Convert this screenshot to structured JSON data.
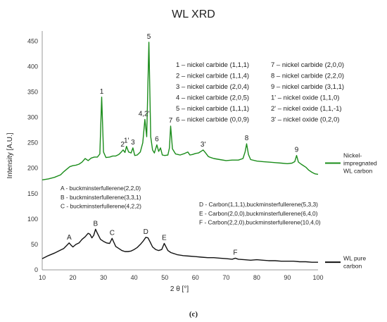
{
  "chart_data": {
    "type": "line",
    "title": "WL XRD",
    "xlabel": "2 θ [°]",
    "ylabel": "Intensity [A.U.]",
    "xlim": [
      10,
      100
    ],
    "ylim": [
      0,
      470
    ],
    "x_ticks": [
      10,
      20,
      30,
      40,
      50,
      60,
      70,
      80,
      90,
      100
    ],
    "y_ticks": [
      0,
      50,
      100,
      150,
      200,
      250,
      300,
      350,
      400,
      450
    ],
    "grid": false,
    "legend_position": "right",
    "caption": "(c)",
    "series": [
      {
        "name": "Nickel-impregnated WL carbon",
        "legend_lines": [
          "Nickel-",
          "impregnated",
          "WL carbon"
        ],
        "color": "#1a8c1a",
        "points": [
          [
            10,
            177
          ],
          [
            12,
            179
          ],
          [
            14,
            182
          ],
          [
            16,
            187
          ],
          [
            17,
            193
          ],
          [
            18,
            198
          ],
          [
            19,
            203
          ],
          [
            20,
            205
          ],
          [
            21,
            206
          ],
          [
            22,
            208
          ],
          [
            23,
            212
          ],
          [
            24,
            219
          ],
          [
            25,
            215
          ],
          [
            26,
            220
          ],
          [
            27,
            222
          ],
          [
            28,
            222
          ],
          [
            28.8,
            228
          ],
          [
            29.4,
            340
          ],
          [
            30,
            232
          ],
          [
            30.8,
            221
          ],
          [
            32,
            222
          ],
          [
            33,
            224
          ],
          [
            34,
            224
          ],
          [
            35,
            227
          ],
          [
            35.8,
            232
          ],
          [
            36.4,
            236
          ],
          [
            37,
            231
          ],
          [
            37.5,
            243
          ],
          [
            38.2,
            232
          ],
          [
            39,
            230
          ],
          [
            39.6,
            240
          ],
          [
            40.2,
            225
          ],
          [
            41,
            226
          ],
          [
            42,
            232
          ],
          [
            42.8,
            250
          ],
          [
            43.5,
            296
          ],
          [
            44.1,
            262
          ],
          [
            44.8,
            448
          ],
          [
            45.4,
            262
          ],
          [
            46,
            236
          ],
          [
            46.6,
            230
          ],
          [
            47.4,
            246
          ],
          [
            48,
            233
          ],
          [
            48.6,
            240
          ],
          [
            49.2,
            226
          ],
          [
            50,
            225
          ],
          [
            51,
            226
          ],
          [
            51.5,
            240
          ],
          [
            51.9,
            283
          ],
          [
            52.5,
            238
          ],
          [
            53.5,
            228
          ],
          [
            55,
            226
          ],
          [
            56.5,
            229
          ],
          [
            57.5,
            232
          ],
          [
            58.2,
            226
          ],
          [
            59,
            227
          ],
          [
            60,
            229
          ],
          [
            61,
            230
          ],
          [
            61.8,
            233
          ],
          [
            62.5,
            236
          ],
          [
            63.3,
            230
          ],
          [
            64.2,
            223
          ],
          [
            65,
            221
          ],
          [
            66,
            219
          ],
          [
            68,
            217
          ],
          [
            70,
            215
          ],
          [
            72,
            216
          ],
          [
            74,
            216
          ],
          [
            75.5,
            219
          ],
          [
            76.2,
            232
          ],
          [
            76.7,
            248
          ],
          [
            77.3,
            227
          ],
          [
            78,
            217
          ],
          [
            80,
            214
          ],
          [
            82,
            213
          ],
          [
            84,
            212
          ],
          [
            86,
            211
          ],
          [
            88,
            210
          ],
          [
            90,
            209
          ],
          [
            91.5,
            210
          ],
          [
            92.4,
            213
          ],
          [
            93,
            225
          ],
          [
            93.6,
            212
          ],
          [
            94.5,
            208
          ],
          [
            96,
            202
          ],
          [
            97,
            196
          ],
          [
            98,
            192
          ],
          [
            99,
            189
          ],
          [
            100,
            188
          ]
        ]
      },
      {
        "name": "WL pure carbon",
        "legend_lines": [
          "WL pure",
          "carbon"
        ],
        "color": "#111111",
        "points": [
          [
            10,
            22
          ],
          [
            12,
            28
          ],
          [
            14,
            33
          ],
          [
            16,
            39
          ],
          [
            17,
            42
          ],
          [
            18,
            48
          ],
          [
            18.8,
            53
          ],
          [
            19.5,
            48
          ],
          [
            20,
            45
          ],
          [
            21,
            50
          ],
          [
            22,
            53
          ],
          [
            23,
            60
          ],
          [
            24,
            65
          ],
          [
            25,
            72
          ],
          [
            25.6,
            70
          ],
          [
            26.2,
            63
          ],
          [
            26.8,
            68
          ],
          [
            27.4,
            80
          ],
          [
            28,
            72
          ],
          [
            29,
            60
          ],
          [
            30,
            56
          ],
          [
            31,
            53
          ],
          [
            32,
            52
          ],
          [
            32.8,
            62
          ],
          [
            33.4,
            54
          ],
          [
            34,
            46
          ],
          [
            35,
            42
          ],
          [
            36,
            38
          ],
          [
            37,
            36
          ],
          [
            38,
            36
          ],
          [
            39,
            37
          ],
          [
            40,
            40
          ],
          [
            41,
            44
          ],
          [
            42,
            50
          ],
          [
            43,
            57
          ],
          [
            43.8,
            64
          ],
          [
            44.5,
            63
          ],
          [
            45.2,
            55
          ],
          [
            46,
            45
          ],
          [
            47,
            40
          ],
          [
            48,
            38
          ],
          [
            49,
            40
          ],
          [
            49.8,
            52
          ],
          [
            50.5,
            44
          ],
          [
            51,
            38
          ],
          [
            52,
            34
          ],
          [
            53,
            32
          ],
          [
            54,
            30
          ],
          [
            56,
            28
          ],
          [
            58,
            27
          ],
          [
            60,
            26
          ],
          [
            62,
            25
          ],
          [
            64,
            24
          ],
          [
            66,
            24
          ],
          [
            68,
            23
          ],
          [
            70,
            22
          ],
          [
            72,
            21
          ],
          [
            73,
            23
          ],
          [
            74,
            21
          ],
          [
            76,
            20
          ],
          [
            78,
            19
          ],
          [
            80,
            20
          ],
          [
            82,
            19
          ],
          [
            84,
            18
          ],
          [
            86,
            18
          ],
          [
            88,
            17
          ],
          [
            90,
            17
          ],
          [
            92,
            17
          ],
          [
            94,
            16
          ],
          [
            96,
            16
          ],
          [
            98,
            15
          ],
          [
            100,
            15
          ]
        ]
      }
    ],
    "peak_labels": [
      {
        "text": "1",
        "x": 29.4,
        "y": 340
      },
      {
        "text": "2",
        "x": 36.2,
        "y": 236
      },
      {
        "text": "1'",
        "x": 37.5,
        "y": 243
      },
      {
        "text": "3",
        "x": 39.6,
        "y": 240
      },
      {
        "text": "4,2'",
        "x": 43.2,
        "y": 296
      },
      {
        "text": "5",
        "x": 44.8,
        "y": 448
      },
      {
        "text": "6",
        "x": 47.4,
        "y": 246
      },
      {
        "text": "7",
        "x": 51.9,
        "y": 283
      },
      {
        "text": "3'",
        "x": 62.5,
        "y": 236
      },
      {
        "text": "8",
        "x": 76.7,
        "y": 248
      },
      {
        "text": "9",
        "x": 93.0,
        "y": 225
      },
      {
        "text": "A",
        "x": 18.8,
        "y": 53
      },
      {
        "text": "B",
        "x": 27.4,
        "y": 80
      },
      {
        "text": "C",
        "x": 32.8,
        "y": 62
      },
      {
        "text": "D",
        "x": 43.8,
        "y": 64
      },
      {
        "text": "E",
        "x": 49.8,
        "y": 52
      },
      {
        "text": "F",
        "x": 73.0,
        "y": 23
      }
    ],
    "annotations_nickel_left": [
      "1 – nickel carbide (1,1,1)",
      "2 – nickel carbide (1,1,4)",
      "3 – nickel carbide (2,0,4)",
      "4 – nickel carbide (2,0,5)",
      "5 – nickel carbide (1,1,1)",
      "6 – nickel carbide (0,0,9)"
    ],
    "annotations_nickel_right": [
      "7 – nickel carbide (2,0,0)",
      "8 – nickel carbide (2,2,0)",
      "9 – nickel carbide (3,1,1)",
      "1' – nickel oxide (1,1,0)",
      "2' – nickel oxide (1,1,-1)",
      "3' – nickel oxide (0,2,0)"
    ],
    "annotations_carbon_left": [
      "A - buckminsterfullerene(2,2,0)",
      "B - buckminsterfullerene(3,3,1)",
      "C - buckminsterfullerene(4,2,2)"
    ],
    "annotations_carbon_right": [
      "D - Carbon(1,1,1),buckminsterfullerene(5,3,3)",
      "E - Carbon(2,0,0),buckminsterfullerene(6,4,0)",
      "F - Carbon(2,2,0),buckminsterfullerene(10,4,0)"
    ]
  }
}
